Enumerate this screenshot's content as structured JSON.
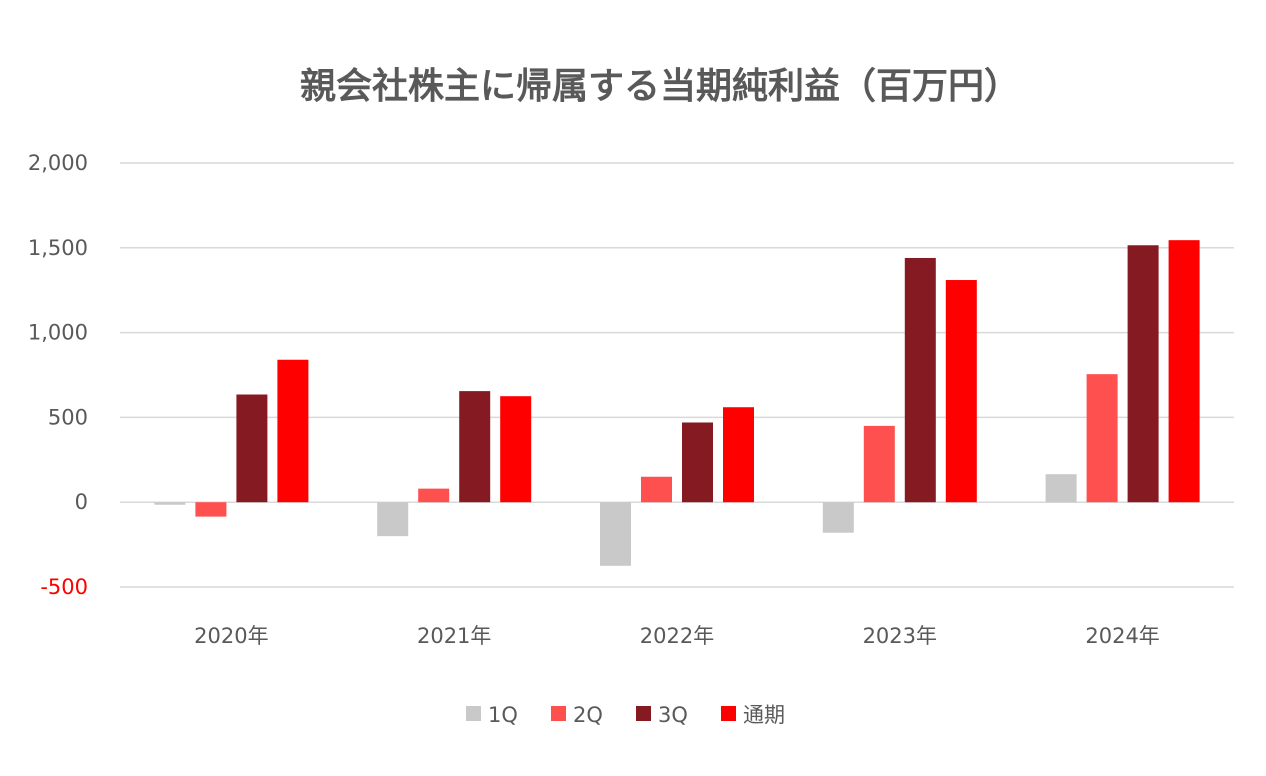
{
  "chart_data": {
    "type": "bar",
    "title": "親会社株主に帰属する当期純利益（百万円）",
    "xlabel": "",
    "ylabel": "",
    "categories": [
      "2020年",
      "2021年",
      "2022年",
      "2023年",
      "2024年"
    ],
    "series": [
      {
        "name": "1Q",
        "color": "#c9c9c9",
        "values": [
          -15,
          -200,
          -375,
          -180,
          165
        ]
      },
      {
        "name": "2Q",
        "color": "#ff5050",
        "values": [
          -85,
          80,
          150,
          450,
          755
        ]
      },
      {
        "name": "3Q",
        "color": "#861a22",
        "values": [
          635,
          655,
          470,
          1440,
          1515
        ]
      },
      {
        "name": "通期",
        "color": "#ff0000",
        "values": [
          840,
          625,
          560,
          1310,
          1545
        ]
      }
    ],
    "ylim": [
      -500,
      2000
    ],
    "yticks": [
      {
        "value": 2000,
        "label": "2,000"
      },
      {
        "value": 1500,
        "label": "1,500"
      },
      {
        "value": 1000,
        "label": "1,000"
      },
      {
        "value": 500,
        "label": "500"
      },
      {
        "value": 0,
        "label": "0"
      },
      {
        "value": -500,
        "label": "-500"
      }
    ],
    "negative_tick_color": "#ff0000",
    "grid": true,
    "legend_position": "bottom"
  }
}
